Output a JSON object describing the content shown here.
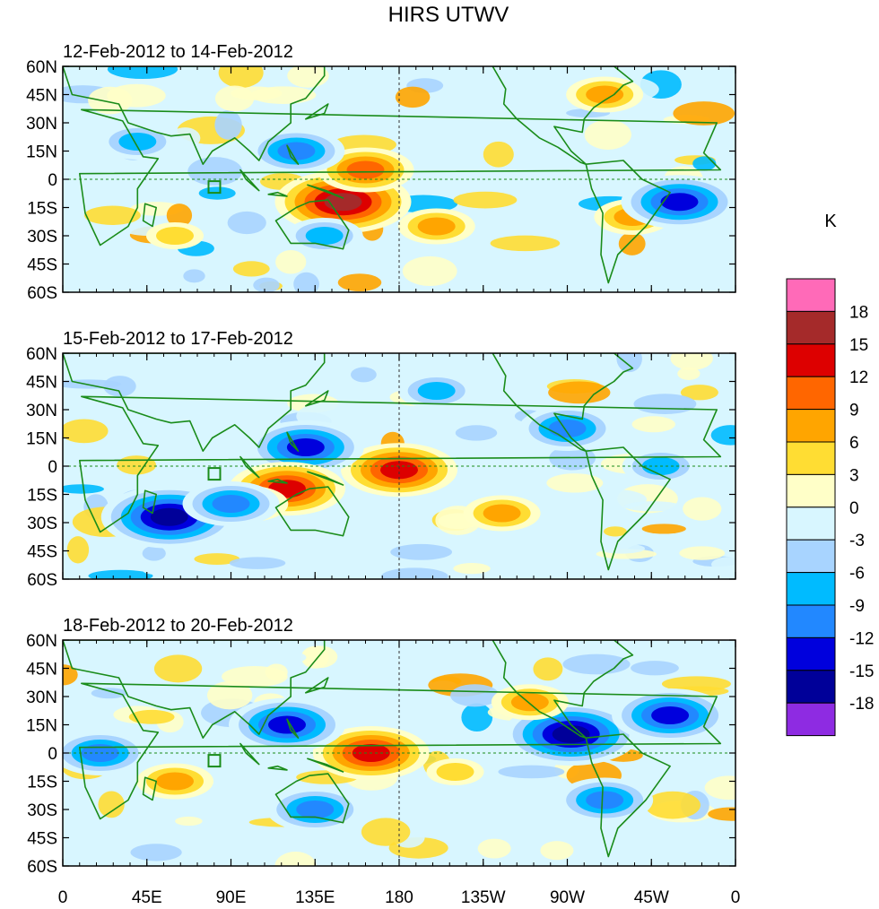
{
  "chart_data": {
    "type": "heatmap",
    "title": "HIRS UTWV",
    "units": "K",
    "panels": [
      {
        "label": "12-Feb-2012 to 14-Feb-2012",
        "features": [
          {
            "lon": 150,
            "lat": -12,
            "value": 16
          },
          {
            "lon": 162,
            "lat": 5,
            "value": 12
          },
          {
            "lon": 125,
            "lat": 15,
            "value": -12
          },
          {
            "lon": 305,
            "lat": -20,
            "value": 9
          },
          {
            "lon": 290,
            "lat": 45,
            "value": 8
          },
          {
            "lon": 330,
            "lat": -12,
            "value": -15
          },
          {
            "lon": 200,
            "lat": -25,
            "value": 7
          },
          {
            "lon": 40,
            "lat": 20,
            "value": -8
          },
          {
            "lon": 140,
            "lat": -30,
            "value": -9
          },
          {
            "lon": 60,
            "lat": -30,
            "value": 6
          }
        ]
      },
      {
        "label": "15-Feb-2012 to 17-Feb-2012",
        "features": [
          {
            "lon": 180,
            "lat": -2,
            "value": 14
          },
          {
            "lon": 130,
            "lat": 10,
            "value": -14
          },
          {
            "lon": 120,
            "lat": -12,
            "value": 13
          },
          {
            "lon": 57,
            "lat": -27,
            "value": -16
          },
          {
            "lon": 270,
            "lat": 20,
            "value": -10
          },
          {
            "lon": 320,
            "lat": 0,
            "value": -8
          },
          {
            "lon": 235,
            "lat": -25,
            "value": 8
          },
          {
            "lon": 100,
            "lat": -20,
            "value": 7
          },
          {
            "lon": 200,
            "lat": 40,
            "value": -7
          },
          {
            "lon": 90,
            "lat": -20,
            "value": -10
          }
        ]
      },
      {
        "label": "18-Feb-2012 to 20-Feb-2012",
        "features": [
          {
            "lon": 165,
            "lat": 0,
            "value": 15
          },
          {
            "lon": 120,
            "lat": 15,
            "value": -15
          },
          {
            "lon": 272,
            "lat": 10,
            "value": -16
          },
          {
            "lon": 325,
            "lat": 20,
            "value": -14
          },
          {
            "lon": 250,
            "lat": 27,
            "value": 8
          },
          {
            "lon": 60,
            "lat": -15,
            "value": 9
          },
          {
            "lon": 135,
            "lat": -30,
            "value": -11
          },
          {
            "lon": 290,
            "lat": -25,
            "value": -12
          },
          {
            "lon": 210,
            "lat": -10,
            "value": 6
          },
          {
            "lon": 20,
            "lat": 0,
            "value": -10
          }
        ]
      }
    ],
    "x_ticks": [
      "0",
      "45E",
      "90E",
      "135E",
      "180",
      "135W",
      "90W",
      "45W",
      "0"
    ],
    "y_ticks": [
      "60N",
      "45N",
      "30N",
      "15N",
      "0",
      "15S",
      "30S",
      "45S",
      "60S"
    ],
    "xlim": [
      0,
      360
    ],
    "ylim": [
      -60,
      60
    ],
    "colorbar": {
      "labels": [
        "18",
        "15",
        "12",
        "9",
        "6",
        "3",
        "0",
        "-3",
        "-6",
        "-9",
        "-12",
        "-15",
        "-18"
      ],
      "colors": [
        "#ff6ab8",
        "#a52a2a",
        "#dd0000",
        "#ff6600",
        "#ffa500",
        "#ffdd33",
        "#ffffc8",
        "#d8f6ff",
        "#a8d4ff",
        "#00bbff",
        "#2288ff",
        "#0000dd",
        "#000099",
        "#8e2be2"
      ]
    },
    "colors": {
      "coast": "#1a8c1a",
      "land_border": "#1a8c1a"
    }
  }
}
